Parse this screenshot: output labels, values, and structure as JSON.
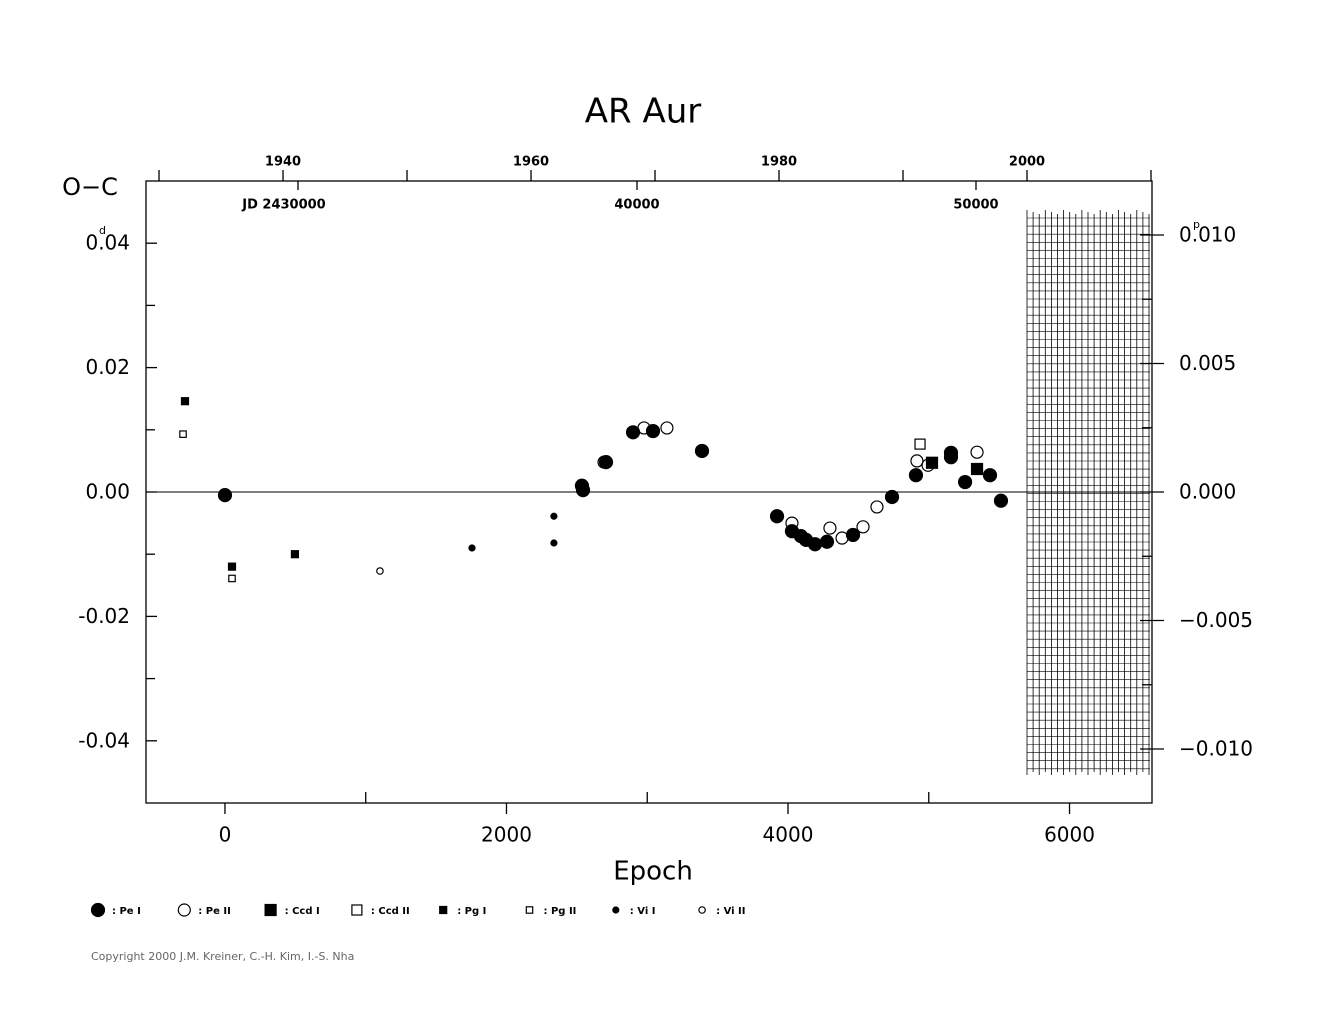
{
  "chart_data": {
    "type": "scatter",
    "title": "AR Aur",
    "y_label": "O−C",
    "y_unit": "d",
    "y2_unit": "p",
    "x_label": "Epoch",
    "copyright": "Copyright 2000 J.M. Kreiner, C.-H. Kim, I.-S. Nha",
    "xlim": [
      -561,
      6586
    ],
    "xticks": [
      0,
      2000,
      4000,
      6000
    ],
    "xminorticks": [
      1000,
      3000,
      5000
    ],
    "ylim": [
      -0.05,
      0.05
    ],
    "yticks": [
      -0.04,
      -0.02,
      {
        "value": 0,
        "label": "0.00"
      },
      0.02,
      0.04
    ],
    "yminorticks": [
      -0.03,
      -0.01,
      0.01,
      0.03
    ],
    "y2lim": [
      -0.0121,
      0.0121
    ],
    "y2ticks": [
      {
        "value": -0.01,
        "label": "−0.010"
      },
      {
        "value": -0.005,
        "label": "−0.005"
      },
      {
        "value": 0,
        "label": "0.000"
      },
      {
        "value": 0.005,
        "label": "0.005"
      },
      {
        "value": 0.01,
        "label": "0.010"
      }
    ],
    "y2minorticks": [
      -0.0075,
      -0.0025,
      0.0025,
      0.0075
    ],
    "year_lim": [
      1928.95,
      2010.08
    ],
    "year_ticks": [
      1940,
      1960,
      1980,
      2000
    ],
    "year_minorticks": [
      1930,
      1950,
      1970,
      1990,
      2010
    ],
    "jd_lim": [
      25516,
      55192
    ],
    "jd_ticks": [
      {
        "value": 30000,
        "label": "JD 2430000"
      },
      {
        "value": 40000,
        "label": "40000"
      },
      {
        "value": 50000,
        "label": "50000"
      }
    ],
    "zero_line": true,
    "series": [
      {
        "name": ": Pe I",
        "marker": "circle",
        "filled": true,
        "size": 6.5,
        "color": "#000",
        "x": [
          0,
          2536,
          2544,
          2707,
          2899,
          3041,
          3389,
          3922,
          4028,
          4092,
          4128,
          4192,
          4277,
          4462,
          4739,
          4909,
          5158,
          5158,
          5258,
          5435,
          5513
        ],
        "values": [
          -0.0005,
          0.001,
          0.0003,
          0.0048,
          0.0096,
          0.0098,
          0.0066,
          -0.0039,
          -0.0063,
          -0.0071,
          -0.0077,
          -0.0084,
          -0.008,
          -0.0069,
          -0.0008,
          0.0027,
          0.0063,
          0.0056,
          0.0016,
          0.0027,
          -0.0014
        ]
      },
      {
        "name": ": Pe II",
        "marker": "circle",
        "filled": false,
        "size": 6,
        "color": "#000",
        "x": [
          2693,
          2977,
          3140,
          4028,
          4298,
          4384,
          4533,
          4632,
          4916,
          4995,
          5343
        ],
        "values": [
          0.0048,
          0.0103,
          0.0103,
          -0.005,
          -0.0058,
          -0.0074,
          -0.0056,
          -0.0024,
          0.005,
          0.0043,
          0.0064
        ]
      },
      {
        "name": ": Ccd I",
        "marker": "square",
        "filled": true,
        "size": 5.5,
        "color": "#000",
        "x": [
          5023,
          5343
        ],
        "values": [
          0.0047,
          0.0037
        ]
      },
      {
        "name": ": Ccd II",
        "marker": "square",
        "filled": false,
        "size": 5,
        "color": "#000",
        "x": [
          4938
        ],
        "values": [
          0.0077
        ]
      },
      {
        "name": ": Pg I",
        "marker": "square",
        "filled": true,
        "size": 3.5,
        "color": "#000",
        "x": [
          -284,
          50,
          497
        ],
        "values": [
          0.0146,
          -0.012,
          -0.01
        ]
      },
      {
        "name": ": Pg II",
        "marker": "square",
        "filled": false,
        "size": 3.2,
        "color": "#000",
        "x": [
          -298,
          50
        ],
        "values": [
          0.0093,
          -0.0139
        ]
      },
      {
        "name": ": Vi I",
        "marker": "circle",
        "filled": true,
        "size": 3,
        "color": "#000",
        "x": [
          1755,
          2337,
          2337
        ],
        "values": [
          -0.009,
          -0.0039,
          -0.0082
        ]
      },
      {
        "name": ": Vi II",
        "marker": "circle",
        "filled": false,
        "size": 3.2,
        "color": "#000",
        "x": [
          1101
        ],
        "values": [
          -0.0127
        ]
      }
    ]
  }
}
